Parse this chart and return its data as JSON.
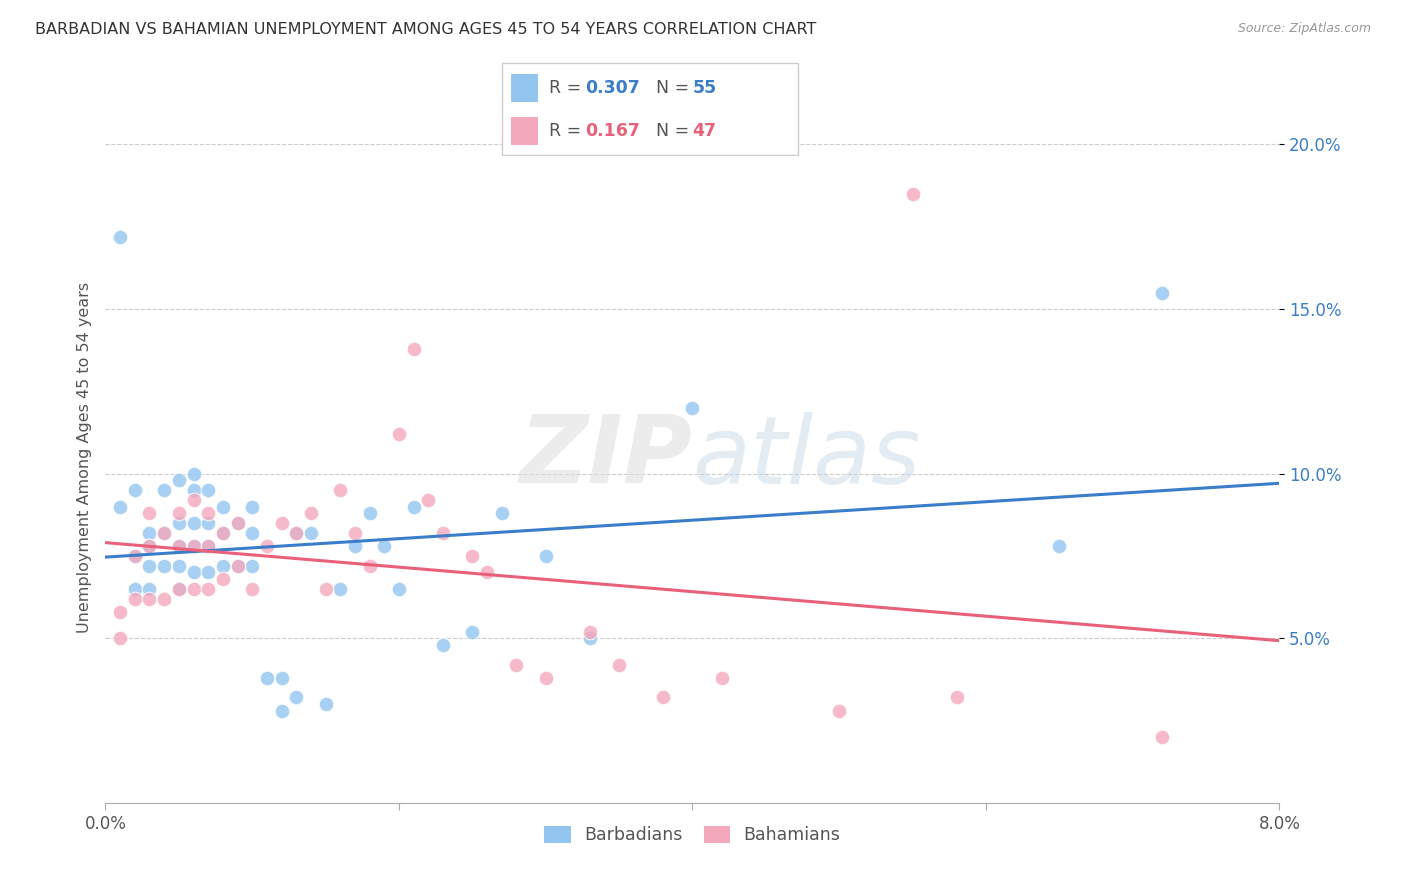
{
  "title": "BARBADIAN VS BAHAMIAN UNEMPLOYMENT AMONG AGES 45 TO 54 YEARS CORRELATION CHART",
  "source": "Source: ZipAtlas.com",
  "ylabel": "Unemployment Among Ages 45 to 54 years",
  "xlim": [
    0.0,
    0.08
  ],
  "ylim": [
    0.0,
    0.21
  ],
  "yticks": [
    0.05,
    0.1,
    0.15,
    0.2
  ],
  "ytick_labels": [
    "5.0%",
    "10.0%",
    "15.0%",
    "20.0%"
  ],
  "xticks": [
    0.0,
    0.02,
    0.04,
    0.06,
    0.08
  ],
  "xtick_labels": [
    "0.0%",
    "",
    "",
    "",
    "8.0%"
  ],
  "barbadians_R": 0.307,
  "barbadians_N": 55,
  "bahamians_R": 0.167,
  "bahamians_N": 47,
  "blue_color": "#92c5f0",
  "pink_color": "#f4a8bc",
  "line_blue": "#3a7dc9",
  "line_pink": "#e8607a",
  "barbadians_x": [
    0.001,
    0.001,
    0.002,
    0.002,
    0.002,
    0.003,
    0.003,
    0.003,
    0.003,
    0.004,
    0.004,
    0.004,
    0.005,
    0.005,
    0.005,
    0.005,
    0.005,
    0.006,
    0.006,
    0.006,
    0.006,
    0.006,
    0.007,
    0.007,
    0.007,
    0.007,
    0.008,
    0.008,
    0.008,
    0.009,
    0.009,
    0.01,
    0.01,
    0.01,
    0.011,
    0.012,
    0.012,
    0.013,
    0.013,
    0.014,
    0.015,
    0.016,
    0.017,
    0.018,
    0.019,
    0.02,
    0.021,
    0.023,
    0.025,
    0.027,
    0.03,
    0.033,
    0.04,
    0.065,
    0.072
  ],
  "barbadians_y": [
    0.172,
    0.09,
    0.095,
    0.075,
    0.065,
    0.082,
    0.078,
    0.072,
    0.065,
    0.095,
    0.082,
    0.072,
    0.098,
    0.085,
    0.078,
    0.072,
    0.065,
    0.1,
    0.095,
    0.085,
    0.078,
    0.07,
    0.095,
    0.085,
    0.078,
    0.07,
    0.09,
    0.082,
    0.072,
    0.085,
    0.072,
    0.09,
    0.082,
    0.072,
    0.038,
    0.038,
    0.028,
    0.082,
    0.032,
    0.082,
    0.03,
    0.065,
    0.078,
    0.088,
    0.078,
    0.065,
    0.09,
    0.048,
    0.052,
    0.088,
    0.075,
    0.05,
    0.12,
    0.078,
    0.155
  ],
  "bahamians_x": [
    0.001,
    0.001,
    0.002,
    0.002,
    0.003,
    0.003,
    0.003,
    0.004,
    0.004,
    0.005,
    0.005,
    0.005,
    0.006,
    0.006,
    0.006,
    0.007,
    0.007,
    0.007,
    0.008,
    0.008,
    0.009,
    0.009,
    0.01,
    0.011,
    0.012,
    0.013,
    0.014,
    0.015,
    0.016,
    0.017,
    0.018,
    0.02,
    0.021,
    0.022,
    0.023,
    0.025,
    0.026,
    0.028,
    0.03,
    0.033,
    0.035,
    0.038,
    0.042,
    0.05,
    0.055,
    0.058,
    0.072
  ],
  "bahamians_y": [
    0.058,
    0.05,
    0.075,
    0.062,
    0.088,
    0.078,
    0.062,
    0.082,
    0.062,
    0.088,
    0.078,
    0.065,
    0.092,
    0.078,
    0.065,
    0.088,
    0.078,
    0.065,
    0.082,
    0.068,
    0.085,
    0.072,
    0.065,
    0.078,
    0.085,
    0.082,
    0.088,
    0.065,
    0.095,
    0.082,
    0.072,
    0.112,
    0.138,
    0.092,
    0.082,
    0.075,
    0.07,
    0.042,
    0.038,
    0.052,
    0.042,
    0.032,
    0.038,
    0.028,
    0.185,
    0.032,
    0.02
  ]
}
